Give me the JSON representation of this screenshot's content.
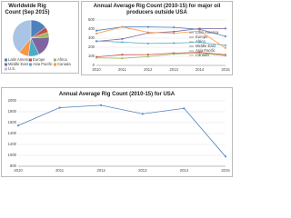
{
  "chart_data": [
    {
      "type": "pie",
      "title": "Worldwide Rig Count (Sep 2015)",
      "categories": [
        "Latin America",
        "Europe",
        "Africa",
        "Middle East",
        "Asia Pacific",
        "Canada",
        "U.S."
      ],
      "values": [
        316,
        107,
        94,
        397,
        206,
        185,
        838
      ],
      "colors": [
        "#4f81bd",
        "#c0504d",
        "#9bbb59",
        "#8064a2",
        "#4bacc6",
        "#f79646",
        "#a9c4e4"
      ],
      "legend": "bottom"
    },
    {
      "type": "line",
      "title": "Annual Average Rig Count (2010-15) for major oil producers outside USA",
      "categories": [
        "2010",
        "2011",
        "2012",
        "2013",
        "2014",
        "2015"
      ],
      "series": [
        {
          "name": "Latin America",
          "color": "#4f81bd",
          "values": [
            383,
            424,
            423,
            419,
            397,
            319
          ]
        },
        {
          "name": "Europe",
          "color": "#c0504d",
          "values": [
            94,
            118,
            119,
            135,
            145,
            117
          ]
        },
        {
          "name": "Africa",
          "color": "#9bbb59",
          "values": [
            83,
            78,
            96,
            125,
            134,
            106
          ]
        },
        {
          "name": "Middle East",
          "color": "#8064a2",
          "values": [
            265,
            291,
            356,
            372,
            406,
            406
          ]
        },
        {
          "name": "Asia Pacific",
          "color": "#4bacc6",
          "values": [
            269,
            256,
            241,
            246,
            254,
            220
          ]
        },
        {
          "name": "Canada",
          "color": "#f79646",
          "values": [
            351,
            423,
            365,
            354,
            379,
            192
          ]
        }
      ],
      "ylim": [
        0,
        500
      ],
      "yticks": [
        0,
        100,
        200,
        300,
        400,
        500
      ],
      "grid": true,
      "legend": "right"
    },
    {
      "type": "line",
      "title": "Annual Average Rig Count (2010-15) for USA",
      "categories": [
        "2010",
        "2011",
        "2012",
        "2013",
        "2014",
        "2015"
      ],
      "series": [
        {
          "color": "#4f81bd",
          "values": [
            1546,
            1875,
            1919,
            1761,
            1862,
            978
          ]
        }
      ],
      "ylim": [
        800,
        2000
      ],
      "yticks": [
        800,
        1000,
        1200,
        1400,
        1600,
        1800,
        2000
      ],
      "grid": true
    }
  ]
}
